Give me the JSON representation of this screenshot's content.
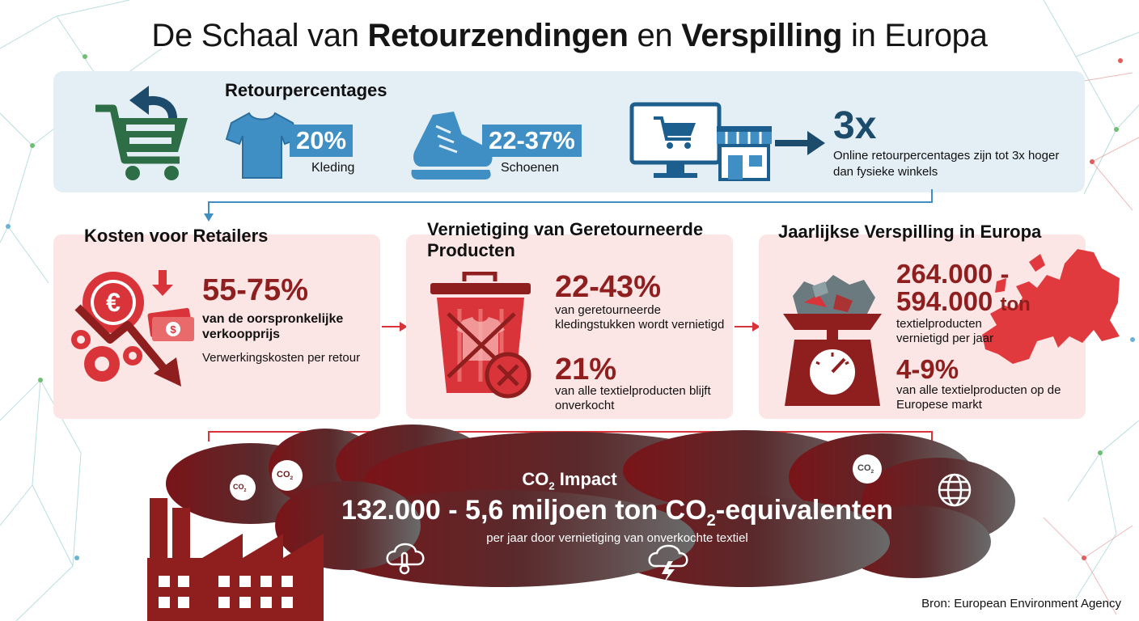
{
  "title": {
    "part1": "De Schaal van ",
    "bold1": "Retourzendingen",
    "part2": " en ",
    "bold2": "Verspilling",
    "part3": " in Europa"
  },
  "return_rates": {
    "heading": "Retourpercentages",
    "clothing": {
      "percent": "20%",
      "label": "Kleding"
    },
    "shoes": {
      "percent": "22-37%",
      "label": "Schoenen"
    },
    "online": {
      "multiplier": "3x",
      "text": "Online retourpercentages zijn tot 3x hoger dan fysieke winkels"
    }
  },
  "retailer_costs": {
    "heading": "Kosten voor Retailers",
    "value": "55-75%",
    "desc": "van de oorspronkelijke verkoopprijs",
    "sub": "Verwerkingskosten per retour",
    "euro_symbol": "€",
    "dollar_symbol": "$"
  },
  "destruction": {
    "heading": "Vernietiging van Geretourneerde Producten",
    "value1": "22-43%",
    "desc1": "van geretourneerde kledingstukken wordt vernietigd",
    "value2": "21%",
    "desc2": "van alle textielproducten blijft onverkocht"
  },
  "annual_waste": {
    "heading": "Jaarlijkse Verspilling in Europa",
    "value1_line1": "264.000 -",
    "value1_line2": "594.000",
    "value1_unit": "ton",
    "desc1": "textielproducten vernietigd per jaar",
    "value2": "4-9%",
    "desc2": "van alle textielproducten op de Europese markt"
  },
  "co2_impact": {
    "label": "CO",
    "label_sub": "2",
    "label_rest": " Impact",
    "value": "132.000 - 5,6 miljoen ton CO",
    "value_sub": "2",
    "value_rest": "-equivalenten",
    "desc": "per jaar door vernietiging van onverkochte textiel",
    "bubble_label": "CO",
    "bubble_sub": "2"
  },
  "source": "Bron: European Environment Agency",
  "icons": [
    "return-cart-icon",
    "tshirt-icon",
    "shoe-icon",
    "computer-cart-icon",
    "store-icon",
    "arrow-right-icon",
    "euro-coin-icon",
    "money-icon",
    "gear-icon",
    "trend-down-arrow-icon",
    "trash-bin-icon",
    "no-symbol-icon",
    "scale-icon",
    "europe-map-icon",
    "factory-icon",
    "globe-icon",
    "thermometer-cloud-icon",
    "storm-cloud-icon"
  ],
  "colors": {
    "accent_blue": "#3f8fc5",
    "dark_blue": "#1c4b6b",
    "dark_red": "#8f1e1e",
    "red": "#d8343a",
    "green": "#2e6e47",
    "card_pink": "#fbe5e5",
    "band_blue": "#e4eef5"
  }
}
